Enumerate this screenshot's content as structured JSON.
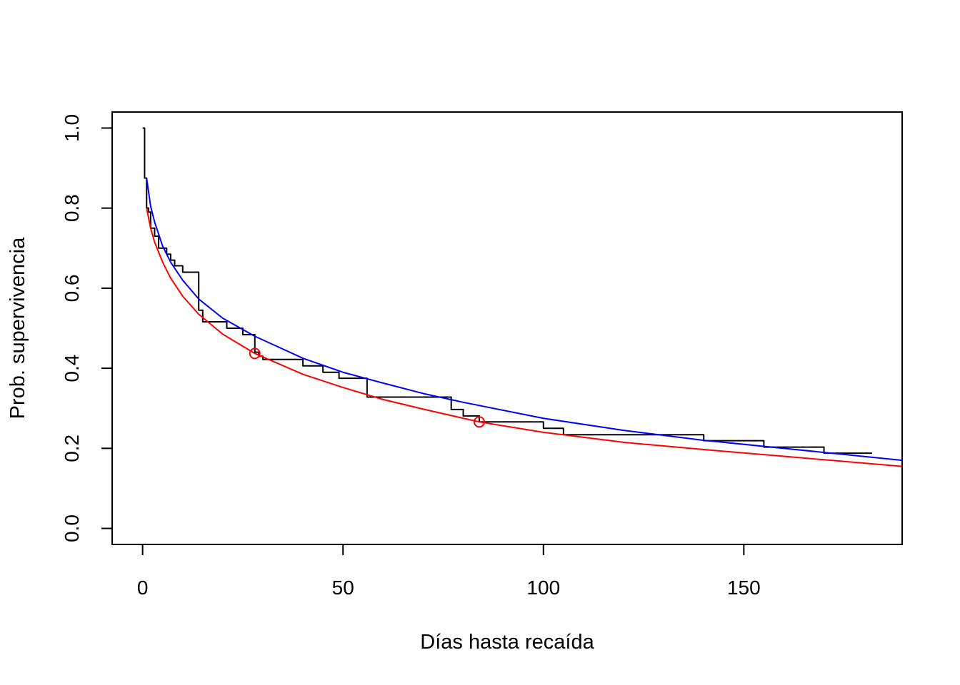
{
  "chart_data": {
    "type": "line",
    "title": "",
    "xlabel": "Días hasta recaída",
    "ylabel": "Prob. supervivencia",
    "xlim": [
      -7.6,
      189.5
    ],
    "ylim": [
      -0.04,
      1.04
    ],
    "x_ticks": [
      0,
      50,
      100,
      150
    ],
    "y_ticks": [
      0.0,
      0.2,
      0.4,
      0.6,
      0.8,
      1.0
    ],
    "x_tick_labels": [
      "0",
      "50",
      "100",
      "150"
    ],
    "y_tick_labels": [
      "0.0",
      "0.2",
      "0.4",
      "0.6",
      "0.8",
      "1.0"
    ],
    "grid": false,
    "legend": "none",
    "series": [
      {
        "kind": "step",
        "color": "#000000",
        "x": [
          0,
          0.5,
          1,
          1.5,
          2,
          3,
          4,
          6,
          7,
          8,
          10,
          14,
          14.5,
          15,
          21,
          25,
          28,
          29,
          30,
          40,
          45,
          49,
          56,
          77,
          80,
          84,
          100,
          105,
          140,
          155,
          170,
          182
        ],
        "y": [
          1.0,
          0.875,
          0.8,
          0.79,
          0.75,
          0.73,
          0.7,
          0.685,
          0.67,
          0.656,
          0.64,
          0.545,
          0.545,
          0.516,
          0.5,
          0.484,
          0.44,
          0.43,
          0.422,
          0.406,
          0.39,
          0.375,
          0.328,
          0.297,
          0.281,
          0.266,
          0.25,
          0.234,
          0.219,
          0.203,
          0.188,
          0.188
        ]
      },
      {
        "kind": "curve",
        "color": "#0000ff",
        "x": [
          1,
          2,
          3,
          5,
          7,
          10,
          14,
          20,
          28,
          40,
          50,
          60,
          70,
          80,
          100,
          120,
          140,
          160,
          189.5
        ],
        "y": [
          0.875,
          0.805,
          0.765,
          0.705,
          0.665,
          0.62,
          0.573,
          0.525,
          0.48,
          0.425,
          0.39,
          0.363,
          0.337,
          0.315,
          0.275,
          0.245,
          0.22,
          0.2,
          0.17
        ]
      },
      {
        "kind": "curve",
        "color": "#ff0000",
        "x": [
          1,
          2,
          3,
          5,
          7,
          10,
          14,
          20,
          28,
          40,
          50,
          60,
          70,
          84,
          100,
          120,
          140,
          160,
          189.5
        ],
        "y": [
          0.8,
          0.75,
          0.715,
          0.665,
          0.625,
          0.58,
          0.535,
          0.485,
          0.437,
          0.385,
          0.352,
          0.322,
          0.298,
          0.266,
          0.24,
          0.215,
          0.197,
          0.18,
          0.155
        ]
      }
    ],
    "points": {
      "color": "#ff0000",
      "x": [
        28,
        84
      ],
      "y": [
        0.437,
        0.266
      ]
    }
  }
}
